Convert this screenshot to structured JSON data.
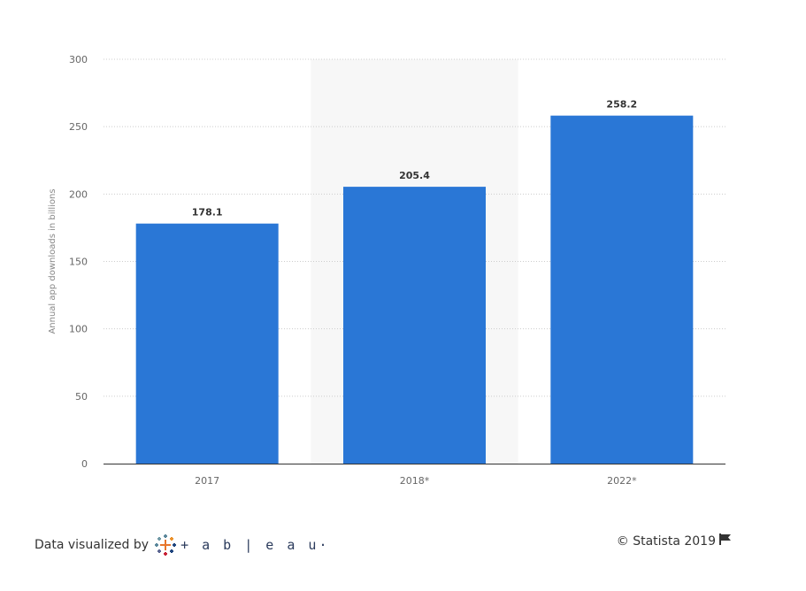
{
  "chart_data": {
    "type": "bar",
    "categories": [
      "2017",
      "2018*",
      "2022*"
    ],
    "values": [
      178.1,
      205.4,
      258.2
    ],
    "value_labels": [
      "178.1",
      "205.4",
      "258.2"
    ],
    "ylabel": "Annual app downloads in billions",
    "ylim": [
      0,
      300
    ],
    "yticks": [
      0,
      50,
      100,
      150,
      200,
      250,
      300
    ],
    "highlighted_category": "2018*",
    "grid": true,
    "bar_color": "#2a77d6",
    "highlight_band_color": "#f7f7f7"
  },
  "footer": {
    "left_text": "Data visualized by",
    "logo_icon": "tableau-icon",
    "logo_text": "+ a b | e a u·",
    "right_text": "© Statista 2019",
    "flag_icon": "flag-icon"
  }
}
